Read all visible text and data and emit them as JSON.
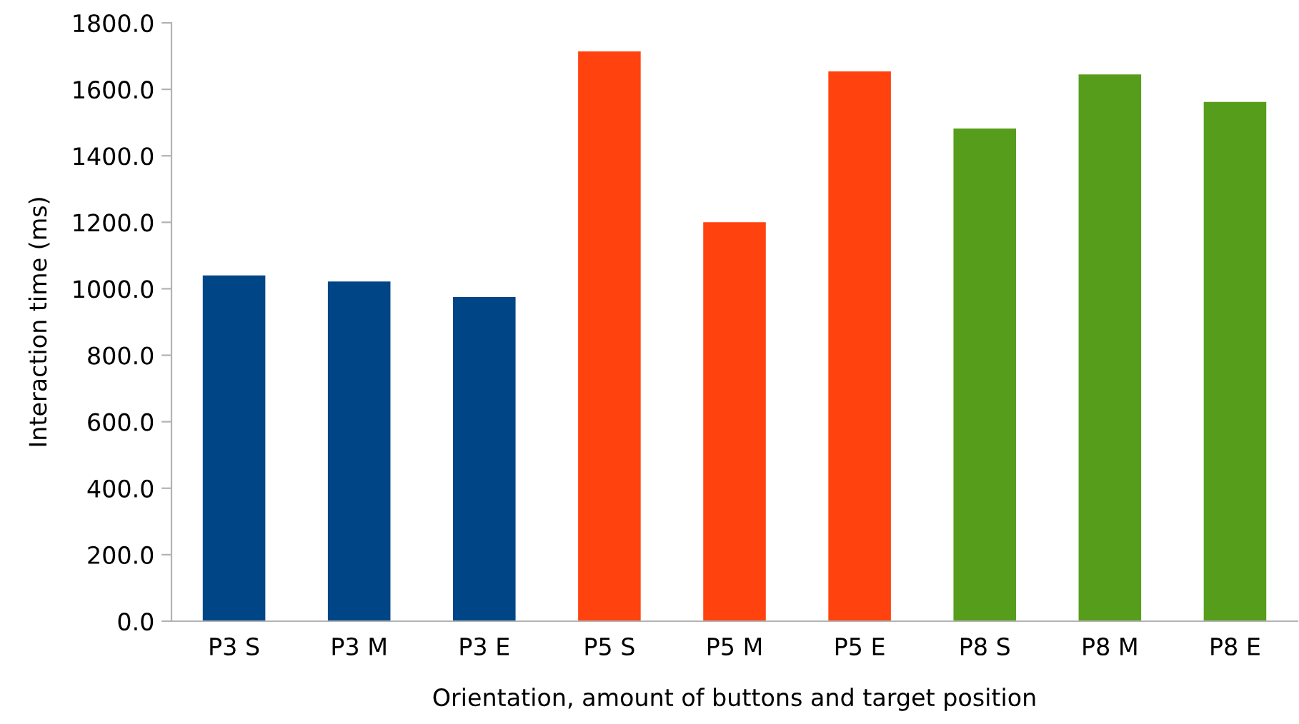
{
  "chart_data": {
    "type": "bar",
    "xlabel": "Orientation, amount of buttons and target position",
    "ylabel": "Interaction time (ms)",
    "categories": [
      "P3 S",
      "P3 M",
      "P3 E",
      "P5 S",
      "P5 M",
      "P5 E",
      "P8 S",
      "P8 M",
      "P8 E"
    ],
    "values": [
      1040,
      1022,
      975,
      1714,
      1200,
      1654,
      1482,
      1645,
      1562
    ],
    "colors": [
      "#004586",
      "#004586",
      "#004586",
      "#ff420e",
      "#ff420e",
      "#ff420e",
      "#579d1c",
      "#579d1c",
      "#579d1c"
    ],
    "ylim": [
      0,
      1800
    ],
    "yticks": [
      {
        "value": 0,
        "label": "0.0"
      },
      {
        "value": 200,
        "label": "200.0"
      },
      {
        "value": 400,
        "label": "400.0"
      },
      {
        "value": 600,
        "label": "600.0"
      },
      {
        "value": 800,
        "label": "800.0"
      },
      {
        "value": 1000,
        "label": "1000.0"
      },
      {
        "value": 1200,
        "label": "1200.0"
      },
      {
        "value": 1400,
        "label": "1400.0"
      },
      {
        "value": 1600,
        "label": "1600.0"
      },
      {
        "value": 1800,
        "label": "1800.0"
      }
    ],
    "grid": false,
    "legend": false
  }
}
